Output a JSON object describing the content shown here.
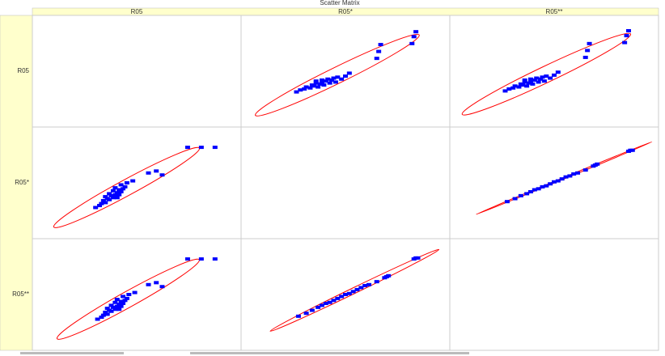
{
  "title": "Scatter Matrix",
  "columns": [
    "R05",
    "R05*",
    "R05**"
  ],
  "rows": [
    "R05",
    "R05*",
    "R05**"
  ],
  "chart_data": [
    {
      "type": "scatter",
      "row": 0,
      "col": 1,
      "color": "#0000ff",
      "ellipse_color": "#ff0000",
      "xlim": [
        0,
        100
      ],
      "ylim": [
        0,
        100
      ],
      "x": [
        25,
        27,
        29,
        30,
        32,
        33,
        34,
        35,
        35,
        36,
        37,
        38,
        38,
        39,
        40,
        41,
        42,
        43,
        44,
        45,
        46,
        48,
        50,
        52,
        66,
        67,
        68,
        84,
        85,
        86
      ],
      "y": [
        29,
        31,
        32,
        34,
        33,
        36,
        35,
        38,
        40,
        34,
        37,
        39,
        41,
        36,
        40,
        42,
        38,
        41,
        43,
        39,
        44,
        42,
        45,
        48,
        63,
        70,
        77,
        78,
        85,
        90
      ]
    },
    {
      "type": "scatter",
      "row": 0,
      "col": 2,
      "color": "#0000ff",
      "ellipse_color": "#ff0000",
      "xlim": [
        0,
        100
      ],
      "ylim": [
        0,
        100
      ],
      "x": [
        25,
        27,
        29,
        30,
        32,
        33,
        34,
        35,
        35,
        36,
        37,
        38,
        38,
        39,
        40,
        41,
        42,
        43,
        44,
        45,
        46,
        48,
        50,
        52,
        66,
        67,
        68,
        86,
        87,
        88
      ],
      "y": [
        30,
        32,
        33,
        35,
        34,
        37,
        36,
        39,
        41,
        35,
        38,
        40,
        42,
        37,
        41,
        43,
        39,
        42,
        44,
        40,
        45,
        43,
        46,
        49,
        64,
        71,
        78,
        79,
        86,
        91
      ]
    },
    {
      "type": "scatter",
      "row": 1,
      "col": 0,
      "color": "#0000ff",
      "ellipse_color": "#ff0000",
      "xlim": [
        0,
        100
      ],
      "ylim": [
        0,
        100
      ],
      "x": [
        29,
        31,
        32,
        34,
        33,
        36,
        35,
        38,
        40,
        34,
        37,
        39,
        41,
        36,
        40,
        42,
        38,
        41,
        43,
        39,
        44,
        42,
        45,
        48,
        56,
        60,
        63,
        76,
        83,
        90
      ],
      "y": [
        25,
        27,
        29,
        30,
        32,
        33,
        34,
        35,
        35,
        36,
        37,
        38,
        38,
        39,
        40,
        41,
        42,
        43,
        44,
        45,
        46,
        48,
        50,
        52,
        60,
        62,
        58,
        86,
        86,
        86
      ]
    },
    {
      "type": "scatter",
      "row": 1,
      "col": 2,
      "color": "#0000ff",
      "ellipse_color": "#ff0000",
      "xlim": [
        0,
        100
      ],
      "ylim": [
        0,
        100
      ],
      "x": [
        26,
        30,
        33,
        36,
        38,
        40,
        42,
        44,
        46,
        48,
        50,
        52,
        54,
        56,
        58,
        60,
        62,
        66,
        70,
        71,
        72,
        88,
        89,
        90
      ],
      "y": [
        31,
        34,
        37,
        39,
        41,
        43,
        44,
        46,
        47,
        49,
        51,
        52,
        54,
        56,
        57,
        59,
        60,
        63,
        67,
        68,
        69,
        82,
        83,
        83
      ]
    },
    {
      "type": "scatter",
      "row": 2,
      "col": 0,
      "color": "#0000ff",
      "ellipse_color": "#ff0000",
      "xlim": [
        0,
        100
      ],
      "ylim": [
        0,
        100
      ],
      "x": [
        30,
        32,
        33,
        35,
        34,
        37,
        36,
        39,
        41,
        35,
        38,
        40,
        42,
        37,
        41,
        43,
        39,
        42,
        44,
        40,
        45,
        43,
        46,
        49,
        56,
        60,
        63,
        76,
        83,
        90
      ],
      "y": [
        25,
        27,
        29,
        30,
        32,
        33,
        34,
        35,
        35,
        36,
        37,
        38,
        38,
        39,
        40,
        41,
        42,
        43,
        44,
        45,
        46,
        48,
        50,
        52,
        60,
        62,
        58,
        86,
        86,
        86
      ]
    },
    {
      "type": "scatter",
      "row": 2,
      "col": 1,
      "color": "#0000ff",
      "ellipse_color": "#ff0000",
      "xlim": [
        0,
        100
      ],
      "ylim": [
        0,
        100
      ],
      "x": [
        26,
        30,
        33,
        36,
        38,
        40,
        42,
        44,
        46,
        48,
        50,
        52,
        54,
        56,
        58,
        60,
        62,
        66,
        70,
        71,
        72,
        85,
        86,
        87
      ],
      "y": [
        28,
        31,
        34,
        37,
        39,
        41,
        42,
        44,
        46,
        48,
        50,
        51,
        53,
        55,
        57,
        59,
        60,
        63,
        67,
        68,
        69,
        86,
        87,
        87
      ]
    }
  ]
}
